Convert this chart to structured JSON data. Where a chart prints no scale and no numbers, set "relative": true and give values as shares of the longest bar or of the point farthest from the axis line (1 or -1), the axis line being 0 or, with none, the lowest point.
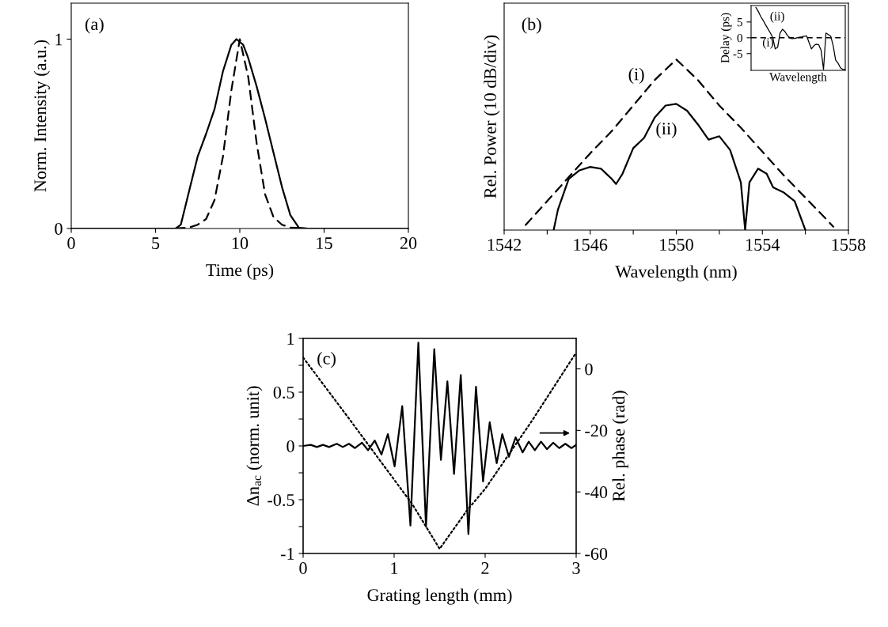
{
  "chart_data": [
    {
      "type": "line",
      "xlabel": "Time (ps)",
      "ylabel": "Norm. Intensity (a.u.)",
      "xlim": [
        0,
        20
      ],
      "xticks": [
        0,
        5,
        10,
        15,
        20
      ],
      "ylim": [
        0,
        1.19
      ],
      "yticks": [
        0,
        1
      ],
      "annotations": [
        "(a)"
      ],
      "series": [
        {
          "color": "#000000",
          "line_style": "solid",
          "x": [
            0,
            6.2,
            6.5,
            7,
            7.5,
            8,
            8.5,
            9,
            9.5,
            9.8,
            10.2,
            10.5,
            11,
            11.5,
            12,
            12.5,
            13,
            13.5,
            14,
            20
          ],
          "values": [
            0,
            0,
            0.02,
            0.2,
            0.38,
            0.5,
            0.63,
            0.83,
            0.97,
            1.0,
            0.97,
            0.9,
            0.75,
            0.58,
            0.4,
            0.22,
            0.07,
            0.005,
            0,
            0
          ]
        },
        {
          "color": "#000000",
          "line_style": "dashed",
          "x": [
            0,
            6,
            7,
            7.5,
            8,
            8.5,
            9,
            9.5,
            10,
            10.5,
            11,
            11.5,
            12,
            12.5,
            13,
            14,
            20
          ],
          "values": [
            0,
            0,
            0.005,
            0.02,
            0.05,
            0.15,
            0.38,
            0.73,
            1.0,
            0.8,
            0.45,
            0.18,
            0.06,
            0.02,
            0.005,
            0,
            0
          ]
        }
      ]
    },
    {
      "type": "line",
      "relative": true,
      "xlabel": "Wavelength (nm)",
      "ylabel": "Rel. Power (10 dB/div)",
      "xlim": [
        1542,
        1558
      ],
      "xticks": [
        1542,
        {
          "value": 1544,
          "label": null
        },
        1546,
        {
          "value": 1548,
          "label": null
        },
        1550,
        {
          "value": 1552,
          "label": null
        },
        1554,
        {
          "value": 1556,
          "label": null
        },
        1558
      ],
      "tick_labels": "x",
      "annotations": [
        "(b)",
        "(i)",
        "(ii)"
      ],
      "series": [
        {
          "color": "#000000",
          "line_style": "dashed",
          "x": [
            1543,
            1544,
            1545,
            1546,
            1547,
            1548,
            1549,
            1550,
            1551,
            1552,
            1553,
            1554,
            1555,
            1556,
            1557,
            1557.3
          ],
          "values": [
            0.03,
            0.17,
            0.31,
            0.45,
            0.58,
            0.73,
            0.88,
            1,
            0.88,
            0.73,
            0.6,
            0.46,
            0.32,
            0.19,
            0.06,
            0.02
          ]
        },
        {
          "color": "#000000",
          "line_style": "solid",
          "x": [
            1544.3,
            1544.5,
            1545,
            1545.5,
            1546,
            1546.5,
            1547,
            1547.2,
            1547.5,
            1548,
            1548.5,
            1549,
            1549.5,
            1550,
            1550.5,
            1551,
            1551.5,
            1552,
            1552.5,
            1553,
            1553.2,
            1553.4,
            1553.8,
            1554.2,
            1554.5,
            1555,
            1555.5,
            1556
          ],
          "values": [
            0,
            0.12,
            0.3,
            0.35,
            0.37,
            0.36,
            0.3,
            0.27,
            0.33,
            0.48,
            0.54,
            0.66,
            0.73,
            0.74,
            0.7,
            0.62,
            0.53,
            0.55,
            0.47,
            0.28,
            0,
            0.28,
            0.36,
            0.33,
            0.25,
            0.22,
            0.17,
            0
          ]
        }
      ]
    },
    {
      "type": "line",
      "xlabel": "Wavelength",
      "ylabel": "Delay (ps)",
      "ylim": [
        -10.3,
        10.2
      ],
      "yticks": [
        -5,
        0,
        5
      ],
      "tick_labels": "y",
      "categories": [
        null,
        null,
        null,
        null,
        null,
        null,
        null,
        null,
        null,
        null,
        null,
        null,
        null,
        null,
        null,
        null,
        null,
        null,
        null,
        null,
        null,
        null,
        null,
        null,
        null,
        null,
        null,
        null,
        null,
        null,
        null,
        null,
        null,
        null,
        null,
        null,
        null,
        null,
        null,
        null
      ],
      "annotations": [
        "(ii)"
      ],
      "ref_lines": [
        {
          "axis": "y",
          "value": 0,
          "label": "(i)",
          "color": "#000000",
          "line_style": "dashed"
        }
      ],
      "series": [
        {
          "color": "#000000",
          "line_style": "solid",
          "values": [
            null,
            null,
            9.6,
            8.3,
            6.7,
            5.5,
            4.1,
            2.8,
            1.5,
            0,
            -3.5,
            -3.0,
            1.5,
            2.7,
            2.0,
            0.8,
            0,
            -0.3,
            -0.2,
            0,
            0.2,
            0.3,
            0.5,
            0.6,
            -1.5,
            -3.5,
            -2.5,
            -2,
            -2.2,
            -4,
            -10,
            1.5,
            1.0,
            0.5,
            -2.5,
            -7,
            -8,
            -9.5,
            -10,
            -10
          ]
        }
      ]
    },
    {
      "type": "line",
      "xlabel": "Grating length (mm)",
      "ylabel": "Δn$_{ac}$ (norm. unit)",
      "y2label": "Rel. phase (rad)",
      "xlim": [
        0,
        3
      ],
      "xticks": [
        0,
        1,
        2,
        3
      ],
      "ylim": [
        -1,
        1
      ],
      "yticks": [
        -1,
        {
          "value": -0.75,
          "label": null
        },
        -0.5,
        {
          "value": -0.25,
          "label": null
        },
        0,
        {
          "value": 0.25,
          "label": null
        },
        0.5,
        {
          "value": 0.75,
          "label": null
        },
        1
      ],
      "y2lim": [
        -60,
        9.9
      ],
      "y2ticks": [
        -60,
        -40,
        -20,
        0
      ],
      "annotations": [
        "(c)"
      ],
      "series": [
        {
          "color": "#000000",
          "line_style": "solid",
          "x": [
            0,
            0.084,
            0.151,
            0.218,
            0.285,
            0.369,
            0.436,
            0.503,
            0.57,
            0.647,
            0.714,
            0.787,
            0.861,
            0.931,
            1.005,
            1.089,
            1.179,
            1.266,
            1.35,
            1.441,
            1.514,
            1.585,
            1.658,
            1.732,
            1.816,
            1.899,
            1.977,
            2.05,
            2.127,
            2.188,
            2.261,
            2.335,
            2.412,
            2.479,
            2.546,
            2.613,
            2.68,
            2.747,
            2.814,
            2.881,
            2.948,
            3.0
          ],
          "values": [
            0,
            0.01,
            -0.01,
            0.01,
            -0.01,
            0.02,
            -0.01,
            0.02,
            -0.02,
            0.03,
            -0.04,
            0.05,
            -0.08,
            0.11,
            -0.19,
            0.37,
            -0.74,
            0.96,
            -0.75,
            0.9,
            -0.13,
            0.6,
            -0.26,
            0.66,
            -0.82,
            0.55,
            -0.33,
            0.22,
            -0.16,
            0.11,
            -0.1,
            0.08,
            -0.06,
            0.04,
            -0.04,
            0.04,
            -0.03,
            0.03,
            -0.02,
            0.02,
            -0.02,
            0.01
          ]
        },
        {
          "color": "#000000",
          "line_style": "dotted",
          "axis": "y2",
          "x": [
            0,
            0.5,
            1.0,
            1.2,
            1.5,
            1.8,
            2.0,
            2.5,
            3.0
          ],
          "values": [
            3.7,
            -16,
            -36,
            -44,
            -58.5,
            -46,
            -39,
            -17.5,
            5.3
          ]
        }
      ]
    }
  ]
}
